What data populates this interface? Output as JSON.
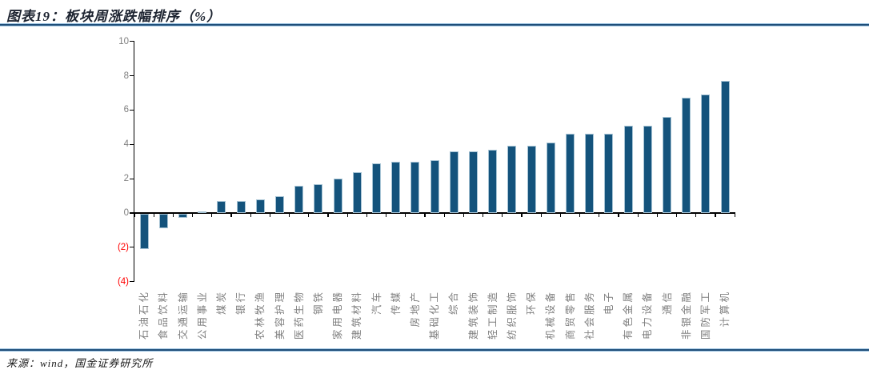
{
  "header": {
    "title": "图表19：板块周涨跌幅排序（%）"
  },
  "footer": {
    "source": "来源：wind，国金证券研究所"
  },
  "colors": {
    "bar": "#14537C",
    "bar_edge": "#A6C3D4",
    "axis": "#000000",
    "tick_label": "#7F7F7F",
    "negative_tick_label": "#FF0000",
    "rule_core": "#1F4E79",
    "rule_edge": "#9CC3E0"
  },
  "chart_data": {
    "type": "bar",
    "title": "板块周涨跌幅排序（%）",
    "categories": [
      "石油石化",
      "食品饮料",
      "交通运输",
      "公用事业",
      "煤炭",
      "银行",
      "农林牧渔",
      "美容护理",
      "医药生物",
      "钢铁",
      "家用电器",
      "建筑材料",
      "汽车",
      "传媒",
      "房地产",
      "基础化工",
      "综合",
      "建筑装饰",
      "轻工制造",
      "纺织服饰",
      "环保",
      "机械设备",
      "商贸零售",
      "社会服务",
      "电子",
      "有色金属",
      "电力设备",
      "通信",
      "非银金融",
      "国防军工",
      "计算机"
    ],
    "values": [
      -2.1,
      -0.9,
      -0.3,
      0.1,
      0.7,
      0.7,
      0.8,
      1.0,
      1.6,
      1.7,
      2.0,
      2.4,
      2.9,
      3.0,
      3.0,
      3.1,
      3.6,
      3.6,
      3.7,
      3.9,
      3.9,
      4.1,
      4.6,
      4.6,
      4.6,
      5.1,
      5.1,
      5.6,
      6.7,
      6.9,
      7.7
    ],
    "xlabel": "",
    "ylabel": "",
    "ylim": [
      -4,
      10
    ],
    "yticks": [
      10,
      8,
      6,
      4,
      2,
      0,
      -2,
      -4
    ],
    "ytick_negative_format": "parentheses",
    "grid": false,
    "legend": "none",
    "bar_color": "#14537C",
    "negative_tick_color": "#FF0000"
  }
}
